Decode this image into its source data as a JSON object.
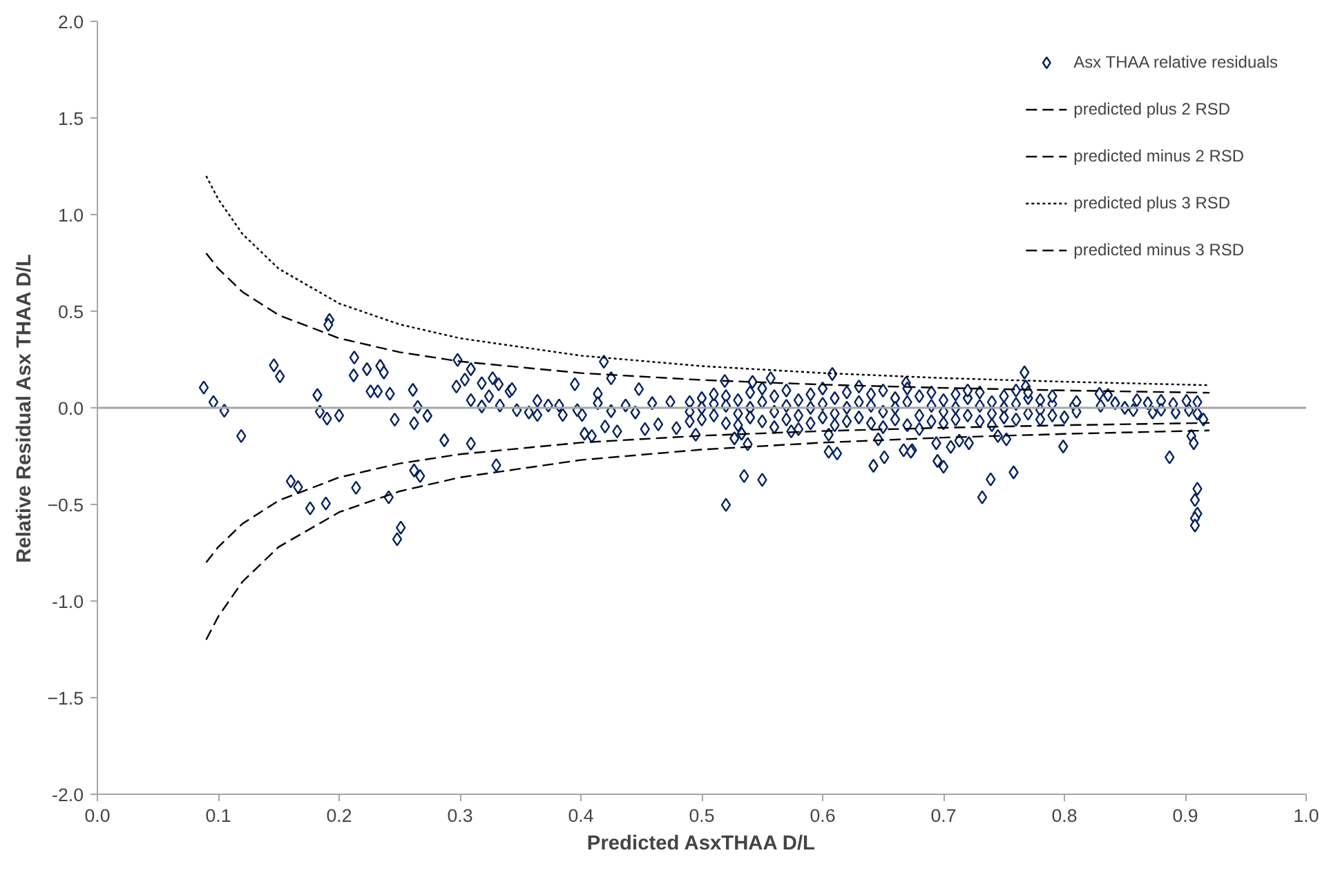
{
  "chart_data": {
    "type": "scatter",
    "xlabel": "Predicted AsxTHAA D/L",
    "ylabel": "Relative Residual Asx THAA D/L",
    "xlim": [
      0,
      1
    ],
    "ylim": [
      -2,
      2
    ],
    "xticks": [
      {
        "value": 0,
        "label": "0.0"
      },
      0.1,
      0.2,
      0.3,
      0.4,
      0.5,
      0.6,
      0.7,
      0.8,
      0.9,
      {
        "value": 1,
        "label": "1.0"
      }
    ],
    "yticks": [
      {
        "value": -2,
        "label": "-2.0"
      },
      -1.5,
      {
        "value": -1,
        "label": "-1.0"
      },
      -0.5,
      {
        "value": 0,
        "label": "0.0"
      },
      0.5,
      {
        "value": 1,
        "label": "1.0"
      },
      1.5,
      {
        "value": 2,
        "label": "2.0"
      }
    ],
    "grid": false,
    "legend": "top right",
    "ref_lines": [
      {
        "axis": "y",
        "value": 0,
        "label": null,
        "color": "#a6a6a6"
      }
    ],
    "series": [
      {
        "name": "Asx THAA relative residuals",
        "marker": "diamond",
        "color": "#002060",
        "x": [
          0.088,
          0.096,
          0.105,
          0.119,
          0.146,
          0.151,
          0.16,
          0.166,
          0.176,
          0.182,
          0.184,
          0.19,
          0.189,
          0.192,
          0.191,
          0.2,
          0.2125,
          0.212,
          0.214,
          0.223,
          0.234,
          0.237,
          0.226,
          0.232,
          0.242,
          0.241,
          0.246,
          0.251,
          0.248,
          0.261,
          0.262,
          0.265,
          0.262,
          0.267,
          0.273,
          0.287,
          0.298,
          0.297,
          0.304,
          0.309,
          0.309,
          0.309,
          0.318,
          0.318,
          0.327,
          0.332,
          0.324,
          0.333,
          0.33,
          0.341,
          0.343,
          0.347,
          0.357,
          0.364,
          0.364,
          0.373,
          0.382,
          0.385,
          0.395,
          0.397,
          0.401,
          0.403,
          0.409,
          0.414,
          0.414,
          0.419,
          0.425,
          0.425,
          0.42,
          0.43,
          0.437,
          0.445,
          0.448,
          0.453,
          0.459,
          0.464,
          0.474,
          0.479,
          0.495,
          0.519,
          0.527,
          0.533,
          0.538,
          0.535,
          0.55,
          0.52,
          0.557,
          0.542,
          0.574,
          0.605,
          0.605,
          0.612,
          0.608,
          0.642,
          0.651,
          0.646,
          0.667,
          0.674,
          0.669,
          0.767,
          0.768,
          0.673,
          0.694,
          0.695,
          0.7,
          0.706,
          0.713,
          0.721,
          0.732,
          0.739,
          0.745,
          0.752,
          0.758,
          0.799,
          0.808,
          0.8,
          0.829,
          0.836,
          0.842,
          0.85,
          0.857,
          0.869,
          0.873,
          0.88,
          0.887,
          0.892,
          0.901,
          0.903,
          0.905,
          0.907,
          0.91,
          0.908,
          0.91,
          0.908,
          0.908,
          0.49,
          0.49,
          0.49,
          0.5,
          0.5,
          0.5,
          0.51,
          0.51,
          0.51,
          0.52,
          0.52,
          0.52,
          0.53,
          0.53,
          0.53,
          0.54,
          0.54,
          0.54,
          0.55,
          0.55,
          0.55,
          0.56,
          0.56,
          0.56,
          0.57,
          0.57,
          0.57,
          0.58,
          0.58,
          0.58,
          0.59,
          0.59,
          0.59,
          0.6,
          0.6,
          0.6,
          0.61,
          0.61,
          0.61,
          0.62,
          0.62,
          0.62,
          0.63,
          0.63,
          0.63,
          0.64,
          0.64,
          0.64,
          0.65,
          0.65,
          0.65,
          0.66,
          0.66,
          0.66,
          0.67,
          0.67,
          0.67,
          0.68,
          0.68,
          0.68,
          0.69,
          0.69,
          0.69,
          0.7,
          0.7,
          0.7,
          0.71,
          0.71,
          0.71,
          0.72,
          0.72,
          0.72,
          0.73,
          0.73,
          0.73,
          0.74,
          0.74,
          0.74,
          0.75,
          0.75,
          0.75,
          0.76,
          0.76,
          0.76,
          0.77,
          0.77,
          0.77,
          0.78,
          0.78,
          0.78,
          0.79,
          0.79,
          0.79,
          0.81,
          0.81,
          0.83,
          0.86,
          0.88,
          0.89,
          0.91,
          0.91,
          0.915
        ],
        "values": [
          0.105,
          0.03,
          -0.015,
          -0.146,
          0.22,
          0.163,
          -0.38,
          -0.41,
          -0.52,
          0.066,
          -0.02,
          -0.056,
          -0.495,
          0.455,
          0.43,
          -0.04,
          0.26,
          0.168,
          -0.414,
          0.2,
          0.217,
          0.183,
          0.085,
          0.085,
          0.073,
          -0.463,
          -0.061,
          -0.62,
          -0.68,
          0.093,
          -0.08,
          0.005,
          -0.324,
          -0.353,
          -0.041,
          -0.168,
          0.248,
          0.11,
          0.146,
          0.2,
          0.04,
          -0.185,
          0.127,
          0.007,
          0.153,
          0.122,
          0.06,
          0.012,
          -0.297,
          0.085,
          0.097,
          -0.012,
          -0.024,
          0.036,
          -0.037,
          0.012,
          0.012,
          -0.037,
          0.122,
          -0.012,
          -0.037,
          -0.134,
          -0.146,
          0.073,
          0.024,
          0.239,
          0.153,
          -0.017,
          -0.097,
          -0.122,
          0.012,
          -0.024,
          0.097,
          -0.11,
          0.024,
          -0.085,
          0.031,
          -0.105,
          -0.139,
          0.139,
          -0.158,
          -0.134,
          -0.188,
          -0.353,
          -0.373,
          -0.502,
          0.153,
          0.134,
          -0.122,
          -0.139,
          -0.227,
          -0.236,
          0.175,
          -0.3,
          -0.256,
          -0.163,
          -0.219,
          -0.219,
          0.129,
          0.183,
          0.11,
          -0.227,
          -0.183,
          -0.275,
          -0.305,
          -0.202,
          -0.17,
          -0.183,
          -0.463,
          -0.37,
          -0.146,
          -0.163,
          -0.334,
          -0.2,
          0.012,
          -0.049,
          0.073,
          0.066,
          0.024,
          0.0,
          -0.012,
          0.024,
          -0.024,
          0.036,
          -0.256,
          -0.024,
          0.036,
          -0.012,
          -0.146,
          -0.183,
          -0.419,
          -0.477,
          -0.548,
          -0.572,
          -0.609,
          0.03,
          -0.02,
          -0.07,
          0.05,
          0.0,
          -0.06,
          0.02,
          -0.04,
          0.07,
          0.06,
          0.01,
          -0.08,
          0.04,
          -0.03,
          -0.09,
          0.08,
          0.0,
          -0.05,
          0.03,
          -0.07,
          0.1,
          0.06,
          -0.02,
          -0.1,
          0.09,
          0.01,
          -0.06,
          0.04,
          -0.04,
          -0.11,
          0.07,
          0.0,
          -0.08,
          0.1,
          0.02,
          -0.05,
          0.05,
          -0.03,
          -0.09,
          0.08,
          0.0,
          -0.07,
          0.03,
          -0.05,
          0.11,
          0.07,
          0.01,
          -0.08,
          0.09,
          -0.02,
          -0.1,
          0.05,
          0.0,
          -0.06,
          0.1,
          0.03,
          -0.09,
          0.06,
          -0.04,
          -0.11,
          0.08,
          0.01,
          -0.07,
          0.04,
          -0.02,
          -0.08,
          0.07,
          0.0,
          -0.06,
          0.05,
          -0.04,
          0.09,
          0.08,
          0.01,
          -0.07,
          0.03,
          -0.03,
          -0.09,
          0.06,
          0.0,
          -0.05,
          0.09,
          0.02,
          -0.06,
          0.05,
          -0.03,
          0.08,
          0.04,
          -0.01,
          -0.06,
          0.02,
          -0.04,
          0.06,
          0.03,
          -0.02,
          0.01,
          0.04,
          -0.01,
          0.02,
          0.03,
          -0.03,
          -0.06
        ]
      },
      {
        "name": "predicted plus 2 RSD",
        "type": "line",
        "line_style": "dashed",
        "color": "#000000",
        "x": [
          0.09,
          0.1,
          0.12,
          0.15,
          0.2,
          0.25,
          0.3,
          0.4,
          0.5,
          0.6,
          0.7,
          0.8,
          0.92
        ],
        "values": [
          0.8,
          0.72,
          0.6,
          0.48,
          0.36,
          0.288,
          0.24,
          0.18,
          0.144,
          0.12,
          0.103,
          0.09,
          0.078
        ]
      },
      {
        "name": "predicted minus 2 RSD",
        "type": "line",
        "line_style": "dashed",
        "color": "#000000",
        "x": [
          0.09,
          0.1,
          0.12,
          0.15,
          0.2,
          0.25,
          0.3,
          0.4,
          0.5,
          0.6,
          0.7,
          0.8,
          0.92
        ],
        "values": [
          -0.8,
          -0.72,
          -0.6,
          -0.48,
          -0.36,
          -0.288,
          -0.24,
          -0.18,
          -0.144,
          -0.12,
          -0.103,
          -0.09,
          -0.078
        ]
      },
      {
        "name": "predicted plus 3 RSD",
        "type": "line",
        "line_style": "dotted",
        "color": "#000000",
        "x": [
          0.09,
          0.1,
          0.12,
          0.15,
          0.2,
          0.25,
          0.3,
          0.4,
          0.5,
          0.6,
          0.7,
          0.8,
          0.92
        ],
        "values": [
          1.2,
          1.08,
          0.9,
          0.72,
          0.54,
          0.432,
          0.36,
          0.27,
          0.216,
          0.18,
          0.154,
          0.135,
          0.117
        ]
      },
      {
        "name": "predicted minus 3 RSD",
        "type": "line",
        "line_style": "dashed",
        "color": "#000000",
        "x": [
          0.09,
          0.1,
          0.12,
          0.15,
          0.2,
          0.25,
          0.3,
          0.4,
          0.5,
          0.6,
          0.7,
          0.8,
          0.92
        ],
        "values": [
          -1.2,
          -1.08,
          -0.9,
          -0.72,
          -0.54,
          -0.432,
          -0.36,
          -0.27,
          -0.216,
          -0.18,
          -0.154,
          -0.135,
          -0.117
        ]
      }
    ]
  }
}
